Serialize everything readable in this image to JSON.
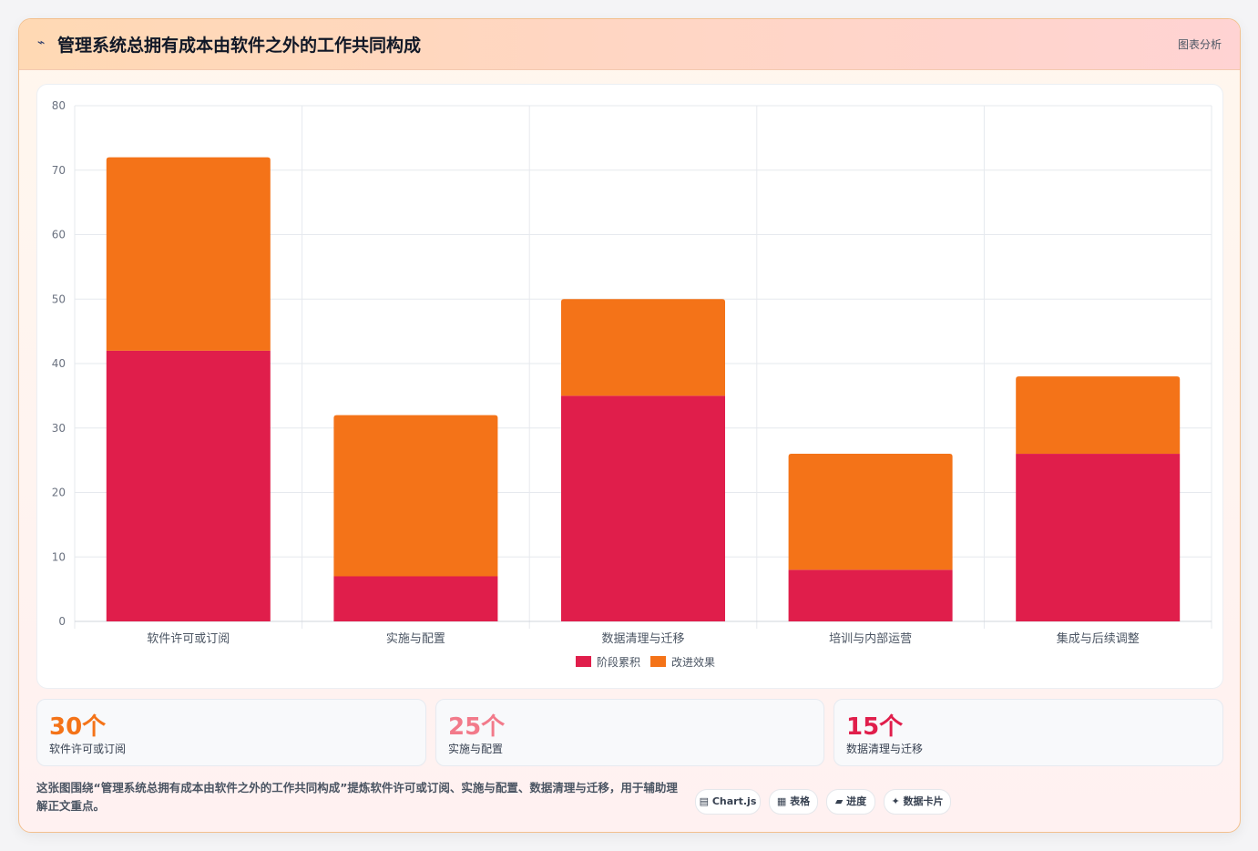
{
  "header": {
    "icon": "⌁",
    "title": "管理系统总拥有成本由软件之外的工作共同构成",
    "tag": "图表分析"
  },
  "chart_data": {
    "type": "bar",
    "stacked": true,
    "categories": [
      "软件许可或订阅",
      "实施与配置",
      "数据清理与迁移",
      "培训与内部运营",
      "集成与后续调整"
    ],
    "series": [
      {
        "name": "阶段累积",
        "color": "#e01e4b",
        "values": [
          42,
          7,
          35,
          8,
          26
        ]
      },
      {
        "name": "改进效果",
        "color": "#f47318",
        "values": [
          30,
          25,
          15,
          18,
          12
        ]
      }
    ],
    "ylim": [
      0,
      80
    ],
    "yticks": [
      0,
      10,
      20,
      30,
      40,
      50,
      60,
      70,
      80
    ],
    "grid": true,
    "legend_position": "bottom"
  },
  "stats": [
    {
      "value": "30个",
      "label": "软件许可或订阅",
      "color": "#f47318"
    },
    {
      "value": "25个",
      "label": "实施与配置",
      "color": "#f27a8a"
    },
    {
      "value": "15个",
      "label": "数据清理与迁移",
      "color": "#e01e4b"
    }
  ],
  "description": "这张图围绕“管理系统总拥有成本由软件之外的工作共同构成”提炼软件许可或订阅、实施与配置、数据清理与迁移，用于辅助理解正文重点。",
  "chips": [
    {
      "icon": "▤",
      "label": "Chart.js"
    },
    {
      "icon": "▦",
      "label": "表格"
    },
    {
      "icon": "▰",
      "label": "进度"
    },
    {
      "icon": "✦",
      "label": "数据卡片"
    }
  ]
}
